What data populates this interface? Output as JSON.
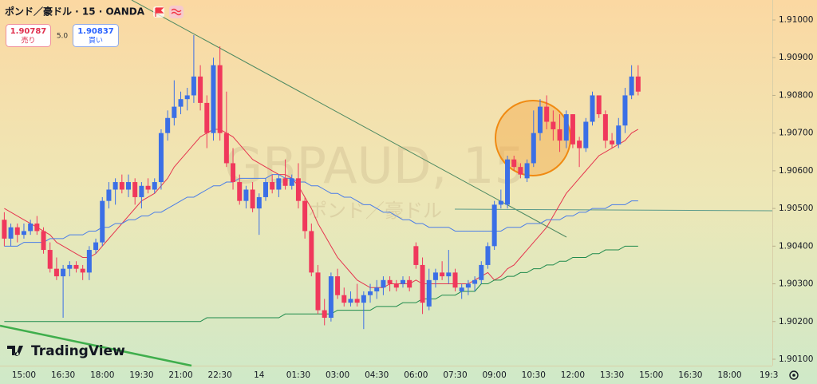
{
  "chart_data": {
    "type": "candlestick",
    "title": "ポンド／豪ドル · 15 · OANDA",
    "watermark": "GBPAUD, 15",
    "watermark_subtitle": "ポンド／豪ドル",
    "brand": "TradingView",
    "sell_price": 1.90787,
    "sell_label": "売り",
    "spread": {
      "value": 5,
      "label": "5.0"
    },
    "buy_price": 1.90837,
    "buy_label": "買い",
    "up_color": "#3b6fe6",
    "down_color": "#f0385c",
    "ylim": [
      1.90083,
      1.91053
    ],
    "yticks": [
      {
        "value": 1.91,
        "label": "1.91000"
      },
      {
        "value": 1.909,
        "label": "1.90900"
      },
      {
        "value": 1.908,
        "label": "1.90800"
      },
      {
        "value": 1.907,
        "label": "1.90700"
      },
      {
        "value": 1.906,
        "label": "1.90600"
      },
      {
        "value": 1.905,
        "label": "1.90500"
      },
      {
        "value": 1.904,
        "label": "1.90400"
      },
      {
        "value": 1.903,
        "label": "1.90300"
      },
      {
        "value": 1.902,
        "label": "1.90200"
      },
      {
        "value": 1.901,
        "label": "1.90100"
      }
    ],
    "grid": false,
    "categories": [
      null,
      null,
      null,
      "15:00",
      null,
      null,
      null,
      null,
      null,
      "16:30",
      null,
      null,
      null,
      null,
      null,
      "18:00",
      null,
      null,
      null,
      null,
      null,
      "19:30",
      null,
      null,
      null,
      null,
      null,
      "21:00",
      null,
      null,
      null,
      null,
      null,
      "22:30",
      null,
      null,
      null,
      null,
      null,
      "14",
      null,
      null,
      null,
      null,
      null,
      "01:30",
      null,
      null,
      null,
      null,
      null,
      "03:00",
      null,
      null,
      null,
      null,
      null,
      "04:30",
      null,
      null,
      null,
      null,
      null,
      "06:00",
      null,
      null,
      null,
      null,
      null,
      "07:30",
      null,
      null,
      null,
      null,
      null,
      "09:00",
      null,
      null,
      null,
      null,
      null,
      "10:30",
      null,
      null,
      null,
      null,
      null,
      "12:00",
      null,
      null,
      null,
      null,
      null,
      "13:30",
      null,
      null,
      null,
      null,
      null,
      "15:00",
      null,
      null,
      null,
      null,
      null,
      "16:30",
      null,
      null,
      null,
      null,
      null,
      "18:00",
      null,
      null,
      null,
      null,
      null,
      "19:3"
    ],
    "ohlc": [
      [
        1.9047,
        1.9049,
        1.904,
        1.9042
      ],
      [
        1.9042,
        1.9046,
        1.904,
        1.9045
      ],
      [
        1.9045,
        1.9046,
        1.9041,
        1.9043
      ],
      [
        1.9043,
        1.9046,
        1.9042,
        1.9044
      ],
      [
        1.9044,
        1.9047,
        1.9043,
        1.9046
      ],
      [
        1.9046,
        1.9048,
        1.9043,
        1.9044
      ],
      [
        1.9044,
        1.9045,
        1.9038,
        1.9039
      ],
      [
        1.9039,
        1.9041,
        1.9033,
        1.9034
      ],
      [
        1.9034,
        1.9037,
        1.9031,
        1.9032
      ],
      [
        1.9032,
        1.9035,
        1.9021,
        1.9034
      ],
      [
        1.9034,
        1.9036,
        1.9032,
        1.9035
      ],
      [
        1.9035,
        1.9036,
        1.9033,
        1.9034
      ],
      [
        1.9034,
        1.9035,
        1.9031,
        1.9033
      ],
      [
        1.9033,
        1.904,
        1.9031,
        1.9039
      ],
      [
        1.9039,
        1.9042,
        1.9038,
        1.9041
      ],
      [
        1.9041,
        1.9053,
        1.904,
        1.9052
      ],
      [
        1.9052,
        1.9057,
        1.905,
        1.9055
      ],
      [
        1.9055,
        1.9058,
        1.9051,
        1.9057
      ],
      [
        1.9057,
        1.9059,
        1.9054,
        1.9055
      ],
      [
        1.9055,
        1.9059,
        1.9053,
        1.9057
      ],
      [
        1.9057,
        1.9058,
        1.9051,
        1.9053
      ],
      [
        1.9053,
        1.9057,
        1.905,
        1.9056
      ],
      [
        1.9056,
        1.9058,
        1.9054,
        1.9055
      ],
      [
        1.9055,
        1.9058,
        1.9054,
        1.9057
      ],
      [
        1.9057,
        1.9071,
        1.9055,
        1.907
      ],
      [
        1.907,
        1.9076,
        1.9068,
        1.9074
      ],
      [
        1.9074,
        1.9084,
        1.9072,
        1.9077
      ],
      [
        1.9077,
        1.9081,
        1.9075,
        1.9079
      ],
      [
        1.9079,
        1.9082,
        1.9076,
        1.908
      ],
      [
        1.908,
        1.9096,
        1.9078,
        1.9085
      ],
      [
        1.9085,
        1.9088,
        1.9076,
        1.9078
      ],
      [
        1.9078,
        1.908,
        1.9066,
        1.907
      ],
      [
        1.907,
        1.909,
        1.9068,
        1.9088
      ],
      [
        1.9088,
        1.9093,
        1.9068,
        1.907
      ],
      [
        1.907,
        1.9081,
        1.9061,
        1.9062
      ],
      [
        1.9062,
        1.9066,
        1.9055,
        1.9057
      ],
      [
        1.9057,
        1.9059,
        1.9051,
        1.9052
      ],
      [
        1.9052,
        1.9056,
        1.905,
        1.9055
      ],
      [
        1.9055,
        1.9057,
        1.9049,
        1.905
      ],
      [
        1.905,
        1.9054,
        1.9043,
        1.9053
      ],
      [
        1.9053,
        1.9058,
        1.9052,
        1.9057
      ],
      [
        1.9057,
        1.9059,
        1.9054,
        1.9055
      ],
      [
        1.9055,
        1.9059,
        1.9053,
        1.9058
      ],
      [
        1.9058,
        1.9063,
        1.9055,
        1.9056
      ],
      [
        1.9056,
        1.9059,
        1.9055,
        1.9058
      ],
      [
        1.9058,
        1.9062,
        1.905,
        1.9052
      ],
      [
        1.9052,
        1.9053,
        1.9042,
        1.9044
      ],
      [
        1.9044,
        1.9046,
        1.9032,
        1.9033
      ],
      [
        1.9033,
        1.9035,
        1.9022,
        1.9023
      ],
      [
        1.9023,
        1.9026,
        1.9019,
        1.9021
      ],
      [
        1.9021,
        1.9033,
        1.902,
        1.9032
      ],
      [
        1.9032,
        1.9034,
        1.9026,
        1.9027
      ],
      [
        1.9027,
        1.9029,
        1.9024,
        1.9025
      ],
      [
        1.9025,
        1.9028,
        1.9024,
        1.9026
      ],
      [
        1.9026,
        1.903,
        1.9024,
        1.9025
      ],
      [
        1.9025,
        1.9028,
        1.9018,
        1.9027
      ],
      [
        1.9027,
        1.903,
        1.9025,
        1.9028
      ],
      [
        1.9028,
        1.9031,
        1.9026,
        1.9029
      ],
      [
        1.9029,
        1.9032,
        1.9027,
        1.9031
      ],
      [
        1.9031,
        1.9032,
        1.9028,
        1.903
      ],
      [
        1.903,
        1.9031,
        1.9028,
        1.9029
      ],
      [
        1.903,
        1.9032,
        1.9029,
        1.9031
      ],
      [
        1.9031,
        1.9032,
        1.9028,
        1.9029
      ],
      [
        1.904,
        1.9041,
        1.9034,
        1.9035
      ],
      [
        1.9035,
        1.9037,
        1.9022,
        1.9025
      ],
      [
        1.9024,
        1.9034,
        1.9023,
        1.9031
      ],
      [
        1.9031,
        1.9034,
        1.9029,
        1.9033
      ],
      [
        1.9033,
        1.9036,
        1.9031,
        1.9032
      ],
      [
        1.9032,
        1.9039,
        1.903,
        1.9033
      ],
      [
        1.9033,
        1.9034,
        1.9028,
        1.9029
      ],
      [
        1.9028,
        1.903,
        1.9026,
        1.9029
      ],
      [
        1.9029,
        1.9031,
        1.9027,
        1.903
      ],
      [
        1.903,
        1.9032,
        1.9028,
        1.9031
      ],
      [
        1.9031,
        1.9036,
        1.903,
        1.9035
      ],
      [
        1.9035,
        1.9041,
        1.9034,
        1.904
      ],
      [
        1.904,
        1.9052,
        1.9039,
        1.9051
      ],
      [
        1.9051,
        1.9055,
        1.905,
        1.9052
      ],
      [
        1.9051,
        1.9064,
        1.905,
        1.9063
      ],
      [
        1.9063,
        1.9064,
        1.906,
        1.9061
      ],
      [
        1.9061,
        1.9062,
        1.9058,
        1.9059
      ],
      [
        1.9058,
        1.9063,
        1.9057,
        1.9062
      ],
      [
        1.9062,
        1.9076,
        1.9061,
        1.907
      ],
      [
        1.907,
        1.9079,
        1.9068,
        1.9077
      ],
      [
        1.9077,
        1.908,
        1.9071,
        1.9073
      ],
      [
        1.9073,
        1.9076,
        1.9068,
        1.9071
      ],
      [
        1.9071,
        1.9075,
        1.9065,
        1.9068
      ],
      [
        1.9068,
        1.9076,
        1.9066,
        1.9075
      ],
      [
        1.9075,
        1.9075,
        1.9066,
        1.9067
      ],
      [
        1.9068,
        1.9069,
        1.9061,
        1.9066
      ],
      [
        1.9066,
        1.9074,
        1.9065,
        1.9073
      ],
      [
        1.9073,
        1.9081,
        1.9072,
        1.908
      ],
      [
        1.908,
        1.908,
        1.9074,
        1.9075
      ],
      [
        1.9075,
        1.9076,
        1.9066,
        1.9068
      ],
      [
        1.9068,
        1.907,
        1.9066,
        1.9067
      ],
      [
        1.9067,
        1.9074,
        1.9066,
        1.9072
      ],
      [
        1.9072,
        1.9082,
        1.907,
        1.908
      ],
      [
        1.908,
        1.9088,
        1.9079,
        1.9085
      ],
      [
        1.9085,
        1.9088,
        1.908,
        1.9081
      ],
      null,
      null,
      null,
      null,
      null,
      null,
      null,
      null,
      null,
      null,
      null,
      null,
      null,
      null,
      null,
      null,
      null,
      null,
      null,
      null
    ],
    "moving_averages": [
      {
        "color": "#e5354f",
        "values": [
          1.905,
          1.9049,
          1.9048,
          1.9047,
          1.9046,
          1.9045,
          1.9044,
          1.9043,
          1.9041,
          1.904,
          1.9039,
          1.9038,
          1.9037,
          1.9037,
          1.9038,
          1.904,
          1.9042,
          1.9044,
          1.9046,
          1.9048,
          1.905,
          1.9052,
          1.9053,
          1.9054,
          1.9056,
          1.9058,
          1.9061,
          1.9063,
          1.9065,
          1.9067,
          1.9069,
          1.907,
          1.9071,
          1.9071,
          1.907,
          1.9069,
          1.9067,
          1.9065,
          1.9063,
          1.9062,
          1.9061,
          1.906,
          1.9059,
          1.9059,
          1.9058,
          1.9056,
          1.9053,
          1.905,
          1.9046,
          1.9043,
          1.904,
          1.9037,
          1.9035,
          1.9033,
          1.9031,
          1.903,
          1.9029,
          1.9029,
          1.9029,
          1.903,
          1.903,
          1.903,
          1.903,
          1.9031,
          1.903,
          1.903,
          1.903,
          1.903,
          1.903,
          1.903,
          1.903,
          1.903,
          1.9031,
          1.9032,
          1.9033,
          1.9031,
          1.9032,
          1.9034,
          1.9035,
          1.9037,
          1.9039,
          1.9041,
          1.9043,
          1.9045,
          1.9048,
          1.9051,
          1.9054,
          1.9056,
          1.9058,
          1.906,
          1.9062,
          1.9064,
          1.9065,
          1.9066,
          1.9067,
          1.9068,
          1.907,
          1.9071,
          null,
          null,
          null,
          null,
          null,
          null,
          null,
          null,
          null,
          null,
          null,
          null,
          null,
          null,
          null,
          null,
          null,
          null,
          null,
          null
        ]
      },
      {
        "color": "#4a7de8",
        "values": [
          1.904,
          1.904,
          1.904,
          1.9041,
          1.9041,
          1.9041,
          1.9041,
          1.9042,
          1.9042,
          1.9042,
          1.9043,
          1.9043,
          1.9043,
          1.9044,
          1.9044,
          1.9045,
          1.9045,
          1.9046,
          1.9046,
          1.9047,
          1.9047,
          1.9048,
          1.9048,
          1.9049,
          1.9049,
          1.905,
          1.9051,
          1.9052,
          1.9053,
          1.9053,
          1.9054,
          1.9055,
          1.9056,
          1.9056,
          1.9057,
          1.9057,
          1.9058,
          1.9058,
          1.9058,
          1.9058,
          1.9058,
          1.9059,
          1.9059,
          1.9058,
          1.9058,
          1.9057,
          1.9057,
          1.9056,
          1.9056,
          1.9055,
          1.9054,
          1.9054,
          1.9053,
          1.9053,
          1.9052,
          1.9051,
          1.9051,
          1.905,
          1.9049,
          1.9049,
          1.9048,
          1.9047,
          1.9047,
          1.9046,
          1.9046,
          1.9045,
          1.9045,
          1.9045,
          1.9045,
          1.9044,
          1.9044,
          1.9044,
          1.9044,
          1.9044,
          1.9044,
          1.9044,
          1.9044,
          1.9045,
          1.9045,
          1.9045,
          1.9046,
          1.9046,
          1.9046,
          1.9047,
          1.9047,
          1.9047,
          1.9048,
          1.9048,
          1.9049,
          1.9049,
          1.905,
          1.905,
          1.905,
          1.9051,
          1.9051,
          1.9051,
          1.9052,
          1.9052,
          null,
          null,
          null,
          null,
          null,
          null,
          null,
          null,
          null,
          null,
          null,
          null,
          null,
          null,
          null,
          null,
          null,
          null,
          null,
          null
        ]
      },
      {
        "color": "#1f8a4c",
        "values": [
          1.902,
          1.902,
          1.902,
          1.902,
          1.902,
          1.902,
          1.902,
          1.902,
          1.902,
          1.902,
          1.902,
          1.902,
          1.902,
          1.902,
          1.902,
          1.902,
          1.902,
          1.902,
          1.902,
          1.902,
          1.902,
          1.902,
          1.902,
          1.902,
          1.902,
          1.902,
          1.902,
          1.902,
          1.902,
          1.902,
          1.902,
          1.9021,
          1.9021,
          1.9021,
          1.9021,
          1.9021,
          1.9021,
          1.9021,
          1.9021,
          1.9021,
          1.9021,
          1.9021,
          1.9021,
          1.9022,
          1.9022,
          1.9022,
          1.9022,
          1.9022,
          1.9022,
          1.9022,
          1.9022,
          1.9023,
          1.9023,
          1.9023,
          1.9023,
          1.9023,
          1.9023,
          1.9024,
          1.9024,
          1.9024,
          1.9024,
          1.9025,
          1.9025,
          1.9025,
          1.9026,
          1.9026,
          1.9026,
          1.9027,
          1.9027,
          1.9027,
          1.9028,
          1.9028,
          1.9028,
          1.903,
          1.903,
          1.9031,
          1.9031,
          1.9032,
          1.9032,
          1.9033,
          1.9033,
          1.9034,
          1.9034,
          1.9035,
          1.9035,
          1.9036,
          1.9036,
          1.9037,
          1.9037,
          1.9037,
          1.9038,
          1.9038,
          1.9039,
          1.9039,
          1.9039,
          1.904,
          1.904,
          1.904,
          null,
          null,
          null,
          null,
          null,
          null,
          null,
          null,
          null,
          null,
          null,
          null,
          null,
          null,
          null,
          null,
          null,
          null,
          null,
          null
        ]
      }
    ]
  }
}
